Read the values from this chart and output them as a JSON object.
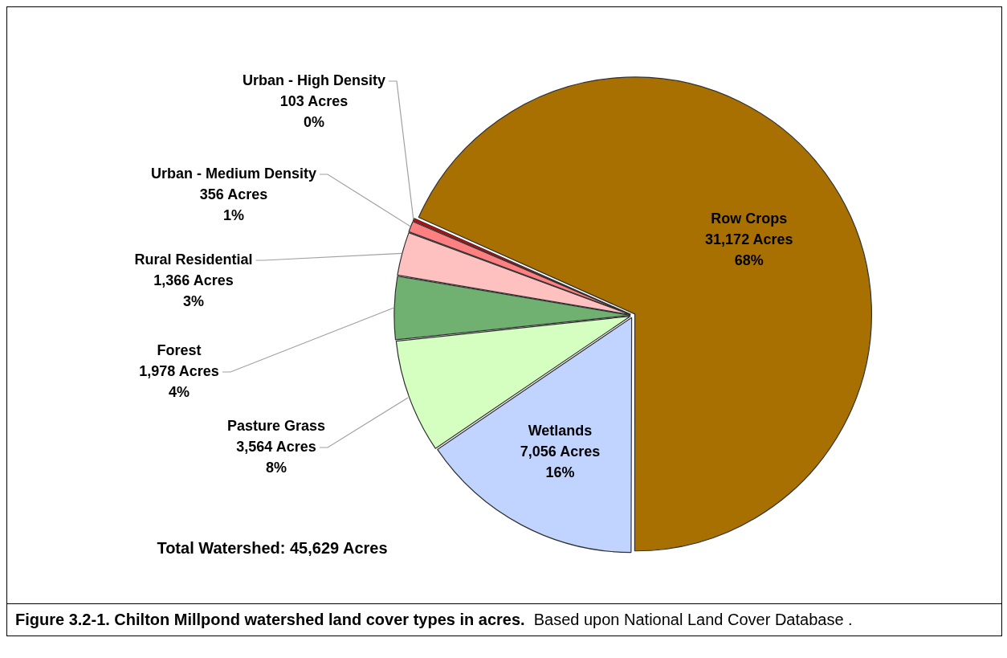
{
  "chart_data": {
    "type": "pie",
    "title": "Figure 3.2-1.  Chilton Millpond watershed land cover types in acres.",
    "categories": [
      "Row Crops",
      "Wetlands",
      "Pasture Grass",
      "Forest",
      "Rural Residential",
      "Urban - Medium Density",
      "Urban - High Density"
    ],
    "values": [
      31172,
      7056,
      3564,
      1978,
      1366,
      356,
      103
    ],
    "colors": [
      "#a87000",
      "#c0d4ff",
      "#d4ffc0",
      "#70b070",
      "#ffc0c0",
      "#ff8080",
      "#e00000"
    ],
    "value_labels": [
      "31,172 Acres\n68%",
      "7,056 Acres\n16%",
      "3,564 Acres\n8%",
      "1,978 Acres\n4%",
      "1,366 Acres\n3%",
      "356 Acres\n1%",
      "103 Acres\n0%"
    ],
    "annotations": [
      "Total Watershed: 45,629 Acres",
      "Based upon National Land Cover Database ."
    ]
  }
}
